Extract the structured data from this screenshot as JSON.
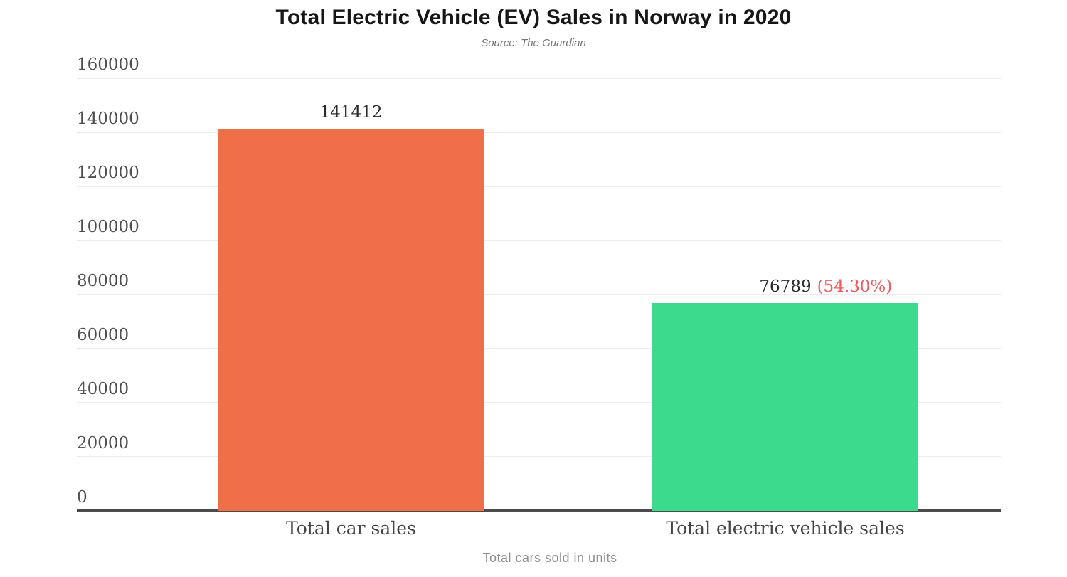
{
  "chart_data": {
    "type": "bar",
    "title": "Total Electric Vehicle (EV) Sales in Norway in 2020",
    "subtitle": "Source: The Guardian",
    "xlabel": "Total cars sold in units",
    "ylabel": "",
    "categories": [
      "Total car sales",
      "Total electric vehicle sales"
    ],
    "values": [
      141412,
      76789
    ],
    "value_labels": [
      "141412",
      "76789"
    ],
    "value_suffixes": [
      "",
      "(54.30%)"
    ],
    "yticks": [
      0,
      20000,
      40000,
      60000,
      80000,
      100000,
      120000,
      140000,
      160000
    ],
    "ylim": [
      0,
      160000
    ],
    "grid": true,
    "legend": false,
    "colors": {
      "bar_colors": [
        "#EF7048",
        "#3CDA8C"
      ],
      "suffix_color": "#F4585C",
      "gridline": "#ececec",
      "axis_line": "#4a4a4a",
      "title": "#161616",
      "subtitle": "#757575",
      "tick_label": "#4f4f4f",
      "value_label": "#2b2b2b",
      "category_label": "#454545",
      "x_axis_label": "#8f8f8f"
    }
  }
}
